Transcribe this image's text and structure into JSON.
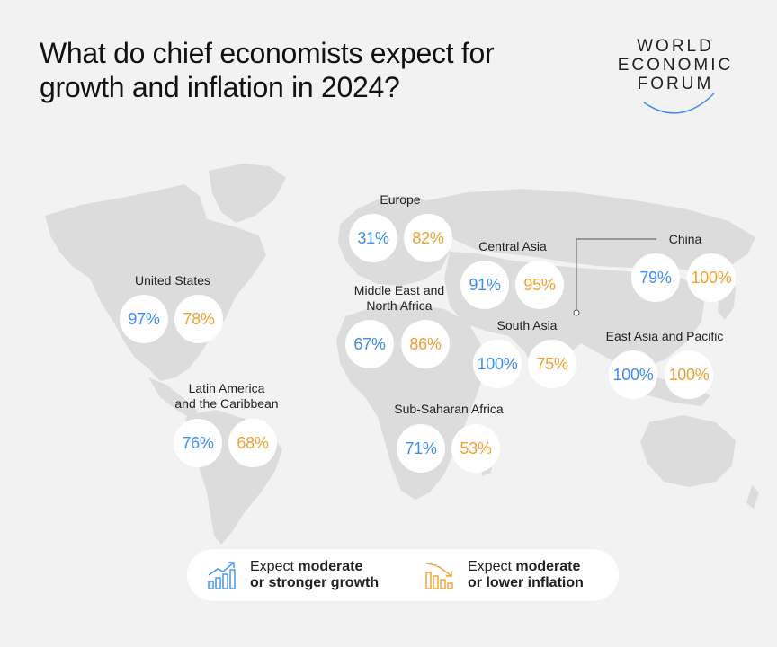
{
  "title": "What do chief economists expect for growth and inflation in 2024?",
  "logo": {
    "line1": "WORLD",
    "line2": "ECONOMIC",
    "line3": "FORUM"
  },
  "colors": {
    "growth": "#3d8ef0",
    "inflation": "#f0a030",
    "background": "#f2f2f2",
    "land": "#dcdcdc"
  },
  "regions": [
    {
      "id": "europe",
      "name": "Europe",
      "growth": "31%",
      "inflation": "82%"
    },
    {
      "id": "central-asia",
      "name": "Central Asia",
      "growth": "91%",
      "inflation": "95%"
    },
    {
      "id": "china",
      "name": "China",
      "growth": "79%",
      "inflation": "100%"
    },
    {
      "id": "united-states",
      "name": "United States",
      "growth": "97%",
      "inflation": "78%"
    },
    {
      "id": "mena",
      "name": "Middle East and North Africa",
      "name_line1": "Middle East and",
      "name_line2": "North Africa",
      "growth": "67%",
      "inflation": "86%"
    },
    {
      "id": "south-asia",
      "name": "South Asia",
      "growth": "100%",
      "inflation": "75%"
    },
    {
      "id": "east-asia-pacific",
      "name": "East Asia and Pacific",
      "growth": "100%",
      "inflation": "100%"
    },
    {
      "id": "latin-america",
      "name": "Latin America and the Caribbean",
      "name_line1": "Latin America",
      "name_line2": "and the Caribbean",
      "growth": "76%",
      "inflation": "68%"
    },
    {
      "id": "sub-saharan-africa",
      "name": "Sub-Saharan Africa",
      "growth": "71%",
      "inflation": "53%"
    }
  ],
  "legend": {
    "growth": {
      "prefix": "Expect ",
      "bold1": "moderate",
      "bold2": "or stronger growth",
      "icon": "growth-chart-icon"
    },
    "inflation": {
      "prefix": "Expect ",
      "bold1": "moderate",
      "bold2": "or lower inflation",
      "icon": "declining-chart-icon"
    }
  }
}
